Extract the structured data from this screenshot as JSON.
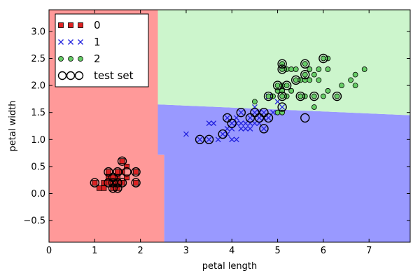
{
  "chart_data": {
    "type": "scatter",
    "xlabel": "petal length",
    "ylabel": "petal width",
    "xlim": [
      0,
      7.9
    ],
    "ylim": [
      -0.9,
      3.4
    ],
    "xticks": [
      0,
      1,
      2,
      3,
      4,
      5,
      6,
      7
    ],
    "yticks": [
      -0.5,
      0.0,
      0.5,
      1.0,
      1.5,
      2.0,
      2.5,
      3.0
    ],
    "xtick_labels": [
      "0",
      "1",
      "2",
      "3",
      "4",
      "5",
      "6",
      "7"
    ],
    "ytick_labels": [
      "−0.5",
      "0.0",
      "0.5",
      "1.0",
      "1.5",
      "2.0",
      "2.5",
      "3.0"
    ],
    "grid": false,
    "legend_position": "top-left",
    "decision_regions": [
      {
        "class": "0",
        "color": "#ff9999",
        "polygon": [
          [
            0,
            -0.9
          ],
          [
            2.52,
            -0.9
          ],
          [
            2.52,
            0.72
          ],
          [
            2.38,
            0.72
          ],
          [
            2.38,
            3.4
          ],
          [
            0,
            3.4
          ]
        ]
      },
      {
        "class": "1",
        "color": "#9999ff",
        "polygon": [
          [
            2.52,
            -0.9
          ],
          [
            7.9,
            -0.9
          ],
          [
            7.9,
            1.45
          ],
          [
            2.38,
            1.65
          ],
          [
            2.38,
            0.72
          ],
          [
            2.52,
            0.72
          ]
        ]
      },
      {
        "class": "2",
        "color": "#ccf5cc",
        "polygon": [
          [
            2.38,
            1.65
          ],
          [
            7.9,
            1.45
          ],
          [
            7.9,
            3.4
          ],
          [
            2.38,
            3.4
          ]
        ]
      }
    ],
    "series": [
      {
        "name": "0",
        "marker": "square",
        "color": "#dd2222",
        "points": [
          [
            1.0,
            0.2
          ],
          [
            1.1,
            0.1
          ],
          [
            1.2,
            0.2
          ],
          [
            1.3,
            0.2
          ],
          [
            1.3,
            0.3
          ],
          [
            1.3,
            0.4
          ],
          [
            1.4,
            0.2
          ],
          [
            1.4,
            0.1
          ],
          [
            1.4,
            0.3
          ],
          [
            1.4,
            0.2
          ],
          [
            1.5,
            0.2
          ],
          [
            1.5,
            0.4
          ],
          [
            1.5,
            0.1
          ],
          [
            1.5,
            0.3
          ],
          [
            1.6,
            0.2
          ],
          [
            1.6,
            0.4
          ],
          [
            1.6,
            0.6
          ],
          [
            1.7,
            0.3
          ],
          [
            1.7,
            0.5
          ],
          [
            1.9,
            0.2
          ],
          [
            1.9,
            0.4
          ],
          [
            1.2,
            0.1
          ],
          [
            1.6,
            0.2
          ],
          [
            1.5,
            0.2
          ]
        ]
      },
      {
        "name": "1",
        "marker": "x",
        "color": "#2222dd",
        "points": [
          [
            3.0,
            1.1
          ],
          [
            3.3,
            1.0
          ],
          [
            3.5,
            1.0
          ],
          [
            3.5,
            1.3
          ],
          [
            3.6,
            1.3
          ],
          [
            3.7,
            1.0
          ],
          [
            3.8,
            1.1
          ],
          [
            3.9,
            1.1
          ],
          [
            3.9,
            1.2
          ],
          [
            3.9,
            1.4
          ],
          [
            4.0,
            1.0
          ],
          [
            4.0,
            1.2
          ],
          [
            4.0,
            1.3
          ],
          [
            4.1,
            1.0
          ],
          [
            4.1,
            1.3
          ],
          [
            4.2,
            1.2
          ],
          [
            4.2,
            1.3
          ],
          [
            4.2,
            1.5
          ],
          [
            4.3,
            1.3
          ],
          [
            4.4,
            1.2
          ],
          [
            4.4,
            1.3
          ],
          [
            4.4,
            1.4
          ],
          [
            4.5,
            1.3
          ],
          [
            4.5,
            1.5
          ],
          [
            4.6,
            1.3
          ],
          [
            4.6,
            1.4
          ],
          [
            4.6,
            1.5
          ],
          [
            4.7,
            1.2
          ],
          [
            4.7,
            1.4
          ],
          [
            4.7,
            1.5
          ],
          [
            4.8,
            1.4
          ],
          [
            4.8,
            1.8
          ],
          [
            4.9,
            1.5
          ],
          [
            5.0,
            1.7
          ],
          [
            5.1,
            1.6
          ],
          [
            4.5,
            1.6
          ],
          [
            4.1,
            1.4
          ],
          [
            4.3,
            1.2
          ]
        ]
      },
      {
        "name": "2",
        "marker": "circle",
        "color": "#66cc66",
        "points": [
          [
            4.5,
            1.7
          ],
          [
            4.8,
            1.8
          ],
          [
            4.9,
            1.8
          ],
          [
            5.0,
            1.5
          ],
          [
            5.0,
            1.9
          ],
          [
            5.0,
            2.0
          ],
          [
            5.1,
            1.5
          ],
          [
            5.1,
            1.9
          ],
          [
            5.1,
            2.0
          ],
          [
            5.1,
            2.3
          ],
          [
            5.1,
            2.4
          ],
          [
            5.2,
            2.0
          ],
          [
            5.2,
            2.3
          ],
          [
            5.3,
            1.9
          ],
          [
            5.3,
            2.3
          ],
          [
            5.4,
            2.1
          ],
          [
            5.4,
            2.3
          ],
          [
            5.5,
            1.8
          ],
          [
            5.5,
            2.1
          ],
          [
            5.6,
            1.8
          ],
          [
            5.6,
            2.1
          ],
          [
            5.6,
            2.2
          ],
          [
            5.6,
            2.4
          ],
          [
            5.7,
            2.1
          ],
          [
            5.7,
            2.3
          ],
          [
            5.8,
            1.6
          ],
          [
            5.8,
            1.8
          ],
          [
            5.8,
            2.2
          ],
          [
            5.9,
            2.1
          ],
          [
            5.9,
            2.3
          ],
          [
            6.0,
            1.8
          ],
          [
            6.0,
            2.5
          ],
          [
            6.1,
            1.9
          ],
          [
            6.1,
            2.3
          ],
          [
            6.1,
            2.5
          ],
          [
            6.3,
            1.8
          ],
          [
            6.4,
            2.0
          ],
          [
            6.6,
            2.1
          ],
          [
            6.7,
            2.0
          ],
          [
            6.7,
            2.2
          ],
          [
            6.9,
            2.3
          ],
          [
            5.2,
            1.8
          ],
          [
            5.5,
            1.8
          ],
          [
            5.1,
            1.8
          ]
        ]
      }
    ],
    "test_set": {
      "name": "test set",
      "points": [
        [
          1.0,
          0.2
        ],
        [
          1.3,
          0.4
        ],
        [
          1.4,
          0.2
        ],
        [
          1.3,
          0.2
        ],
        [
          1.4,
          0.1
        ],
        [
          1.5,
          0.2
        ],
        [
          1.5,
          0.4
        ],
        [
          1.6,
          0.6
        ],
        [
          1.6,
          0.2
        ],
        [
          1.7,
          0.4
        ],
        [
          1.9,
          0.4
        ],
        [
          1.9,
          0.2
        ],
        [
          1.5,
          0.1
        ],
        [
          1.4,
          0.3
        ],
        [
          3.3,
          1.0
        ],
        [
          3.5,
          1.0
        ],
        [
          3.8,
          1.1
        ],
        [
          3.9,
          1.4
        ],
        [
          4.0,
          1.3
        ],
        [
          4.2,
          1.5
        ],
        [
          4.4,
          1.4
        ],
        [
          4.5,
          1.5
        ],
        [
          4.6,
          1.4
        ],
        [
          4.7,
          1.5
        ],
        [
          4.8,
          1.4
        ],
        [
          4.7,
          1.2
        ],
        [
          4.8,
          1.8
        ],
        [
          5.1,
          1.6
        ],
        [
          5.6,
          1.4
        ],
        [
          5.1,
          2.3
        ],
        [
          5.1,
          2.4
        ],
        [
          5.2,
          2.0
        ],
        [
          5.5,
          1.8
        ],
        [
          5.6,
          2.2
        ],
        [
          5.6,
          2.4
        ],
        [
          5.8,
          1.8
        ],
        [
          6.0,
          2.5
        ],
        [
          6.3,
          1.8
        ],
        [
          5.0,
          2.0
        ],
        [
          5.4,
          2.1
        ],
        [
          5.1,
          1.8
        ]
      ]
    },
    "legend": {
      "entries": [
        {
          "label": "0",
          "marker": "square",
          "color": "#dd2222"
        },
        {
          "label": "1",
          "marker": "x",
          "color": "#2222dd"
        },
        {
          "label": "2",
          "marker": "circle",
          "color": "#66cc66"
        },
        {
          "label": "test set",
          "marker": "hollow-circle",
          "color": "#000000"
        }
      ]
    }
  }
}
